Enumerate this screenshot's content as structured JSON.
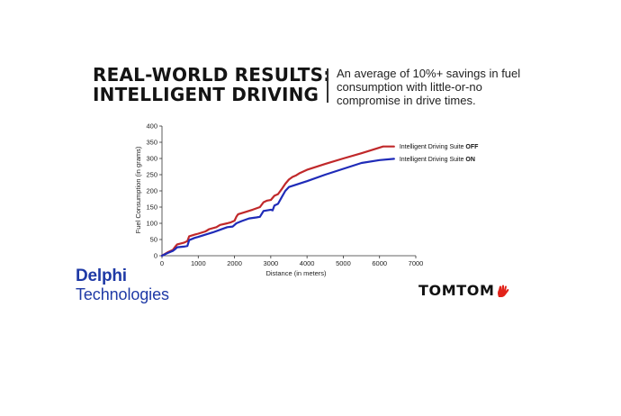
{
  "headline": {
    "line1": "REAL-WORLD RESULTS:",
    "line2": "INTELLIGENT DRIVING",
    "subhead": "An average of 10%+ savings in fuel consumption with little-or-no compromise in drive times."
  },
  "chart_data": {
    "type": "line",
    "title": "",
    "xlabel": "Distance (in meters)",
    "ylabel": "Fuel Consumption (in grams)",
    "xlim": [
      0,
      7000
    ],
    "ylim": [
      0,
      400
    ],
    "xticks": [
      0,
      1000,
      2000,
      3000,
      4000,
      5000,
      6000,
      7000
    ],
    "yticks": [
      0,
      50,
      100,
      150,
      200,
      250,
      300,
      350,
      400
    ],
    "grid": false,
    "legend_position": "right, at line ends",
    "series": [
      {
        "name": "Intelligent Driving Suite OFF",
        "name_prefix": "Intelligent Driving Suite ",
        "name_emphasis": "OFF",
        "color": "#c0282a",
        "points": [
          [
            0,
            0
          ],
          [
            150,
            10
          ],
          [
            300,
            18
          ],
          [
            380,
            30
          ],
          [
            420,
            35
          ],
          [
            600,
            40
          ],
          [
            700,
            45
          ],
          [
            750,
            60
          ],
          [
            900,
            65
          ],
          [
            1000,
            68
          ],
          [
            1200,
            75
          ],
          [
            1300,
            82
          ],
          [
            1500,
            88
          ],
          [
            1600,
            95
          ],
          [
            1800,
            100
          ],
          [
            1900,
            103
          ],
          [
            2000,
            108
          ],
          [
            2050,
            120
          ],
          [
            2100,
            128
          ],
          [
            2300,
            135
          ],
          [
            2500,
            142
          ],
          [
            2700,
            150
          ],
          [
            2800,
            165
          ],
          [
            2900,
            170
          ],
          [
            3000,
            172
          ],
          [
            3100,
            185
          ],
          [
            3200,
            190
          ],
          [
            3300,
            205
          ],
          [
            3400,
            222
          ],
          [
            3500,
            235
          ],
          [
            3600,
            243
          ],
          [
            3700,
            248
          ],
          [
            3800,
            255
          ],
          [
            4000,
            265
          ],
          [
            4500,
            283
          ],
          [
            5000,
            300
          ],
          [
            5500,
            316
          ],
          [
            5900,
            330
          ],
          [
            6100,
            337
          ],
          [
            6400,
            337
          ]
        ]
      },
      {
        "name": "Intelligent Driving Suite ON",
        "name_prefix": "Intelligent Driving Suite ",
        "name_emphasis": "ON",
        "color": "#1f2bb8",
        "points": [
          [
            0,
            0
          ],
          [
            150,
            8
          ],
          [
            300,
            15
          ],
          [
            380,
            22
          ],
          [
            420,
            26
          ],
          [
            600,
            28
          ],
          [
            700,
            30
          ],
          [
            750,
            48
          ],
          [
            900,
            55
          ],
          [
            1000,
            58
          ],
          [
            1200,
            65
          ],
          [
            1400,
            72
          ],
          [
            1600,
            80
          ],
          [
            1800,
            88
          ],
          [
            1950,
            90
          ],
          [
            2000,
            95
          ],
          [
            2050,
            100
          ],
          [
            2200,
            107
          ],
          [
            2400,
            115
          ],
          [
            2600,
            118
          ],
          [
            2700,
            120
          ],
          [
            2800,
            138
          ],
          [
            3000,
            142
          ],
          [
            3050,
            140
          ],
          [
            3100,
            155
          ],
          [
            3200,
            160
          ],
          [
            3300,
            180
          ],
          [
            3400,
            200
          ],
          [
            3500,
            212
          ],
          [
            4000,
            230
          ],
          [
            4500,
            250
          ],
          [
            5000,
            268
          ],
          [
            5500,
            286
          ],
          [
            6000,
            295
          ],
          [
            6400,
            299
          ]
        ]
      }
    ]
  },
  "logos": {
    "delphi_line1": "Delphi",
    "delphi_line2": "Technologies",
    "tomtom": "TOMTOM",
    "tomtom_color": "#e2231a",
    "delphi_color": "#1f3aa6"
  }
}
